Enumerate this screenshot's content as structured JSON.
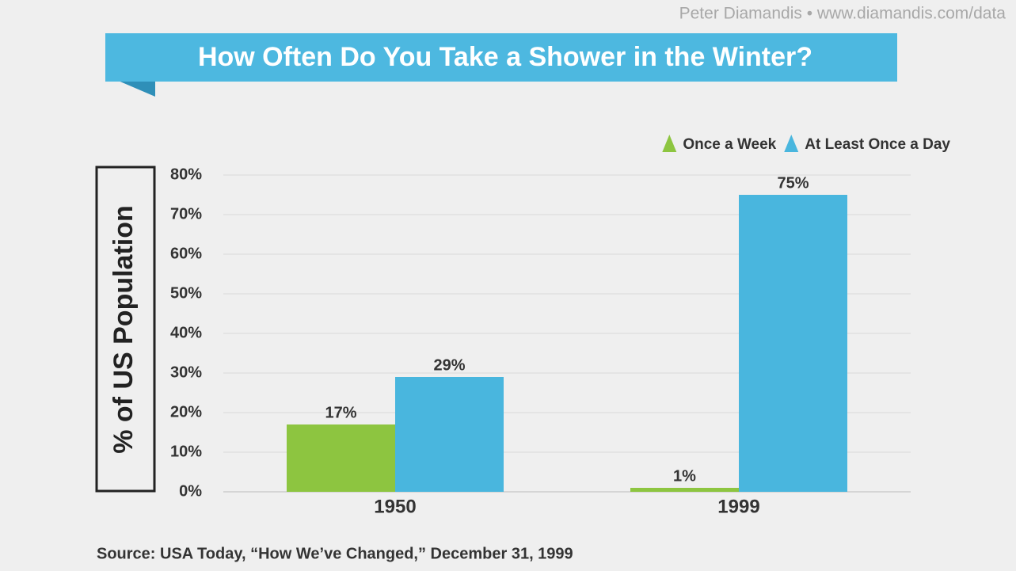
{
  "chart_data": {
    "type": "bar",
    "title": "How Often Do You Take a Shower in the Winter?",
    "credit": "Peter Diamandis • www.diamandis.com/data",
    "y_label": "% of US Population",
    "source": "Source: USA Today, “How We’ve Changed,” December 31, 1999",
    "categories": [
      "1950",
      "1999"
    ],
    "series": [
      {
        "name": "Once a Week",
        "color": "#8dc540",
        "values": [
          17,
          1
        ],
        "value_labels": [
          "17%",
          "1%"
        ]
      },
      {
        "name": "At Least Once a Day",
        "color": "#49b6de",
        "values": [
          29,
          75
        ],
        "value_labels": [
          "29%",
          "75%"
        ]
      }
    ],
    "ylim": [
      0,
      80
    ],
    "yticks": [
      {
        "value": 0,
        "label": "0%"
      },
      {
        "value": 10,
        "label": "10%"
      },
      {
        "value": 20,
        "label": "20%"
      },
      {
        "value": 30,
        "label": "30%"
      },
      {
        "value": 40,
        "label": "40%"
      },
      {
        "value": 50,
        "label": "50%"
      },
      {
        "value": 60,
        "label": "60%"
      },
      {
        "value": 70,
        "label": "70%"
      },
      {
        "value": 80,
        "label": "80%"
      }
    ],
    "grid": true,
    "legend": "top-right"
  }
}
